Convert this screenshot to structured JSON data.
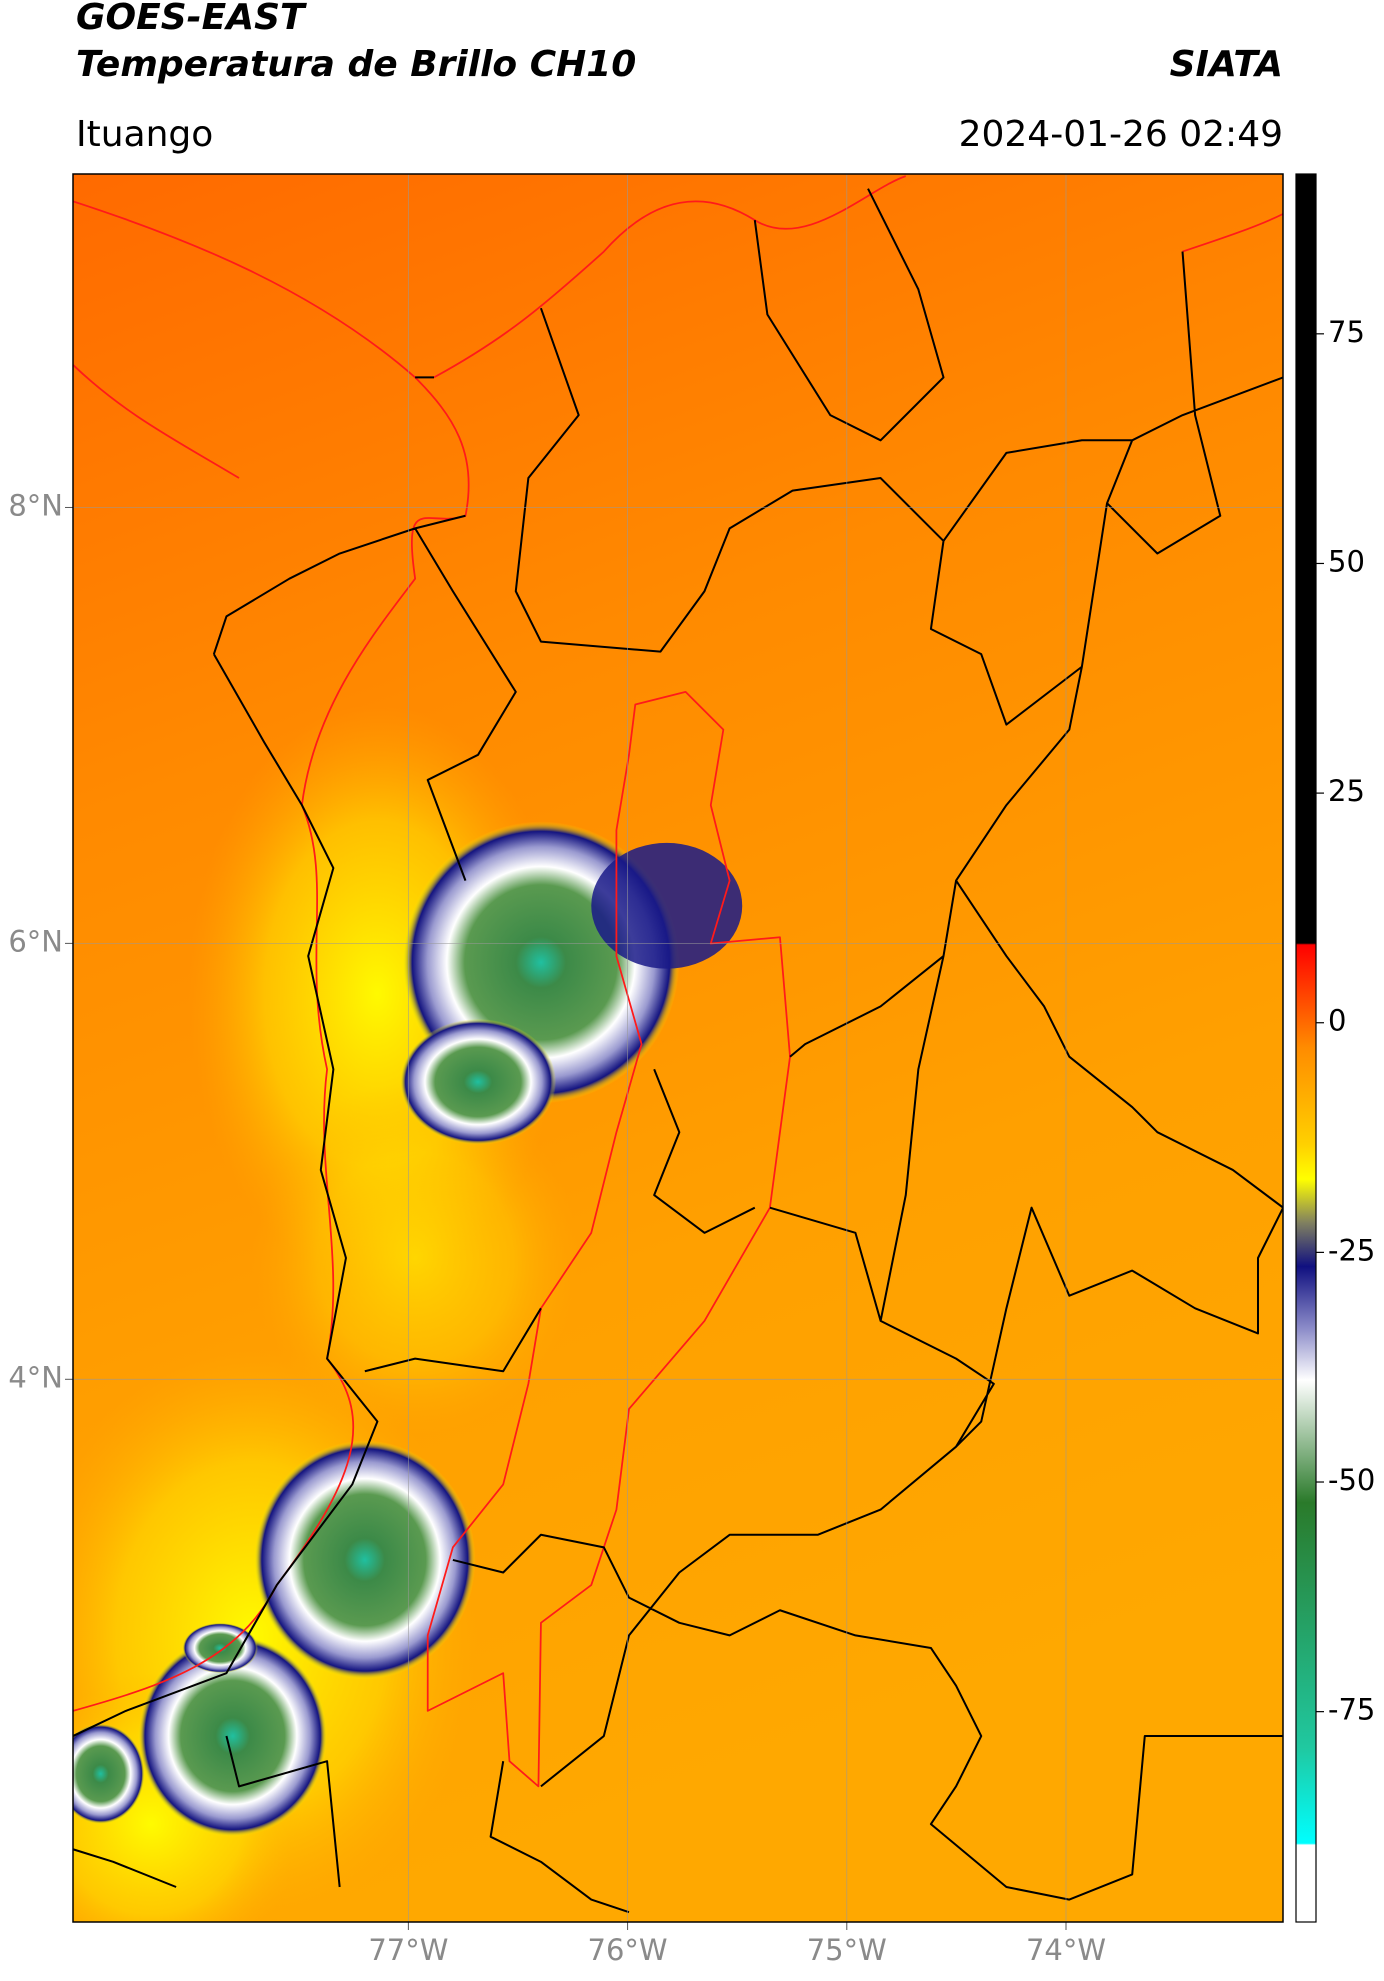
{
  "header": {
    "title": "GOES-EAST",
    "subtitle": "Temperatura de Brillo CH10",
    "source": "SIATA",
    "region": "Ituango",
    "timestamp": "2024-01-26 02:49"
  },
  "map": {
    "xlim": [
      -78.53,
      -73.01
    ],
    "ylim": [
      1.51,
      9.53
    ],
    "xticks": [
      {
        "value": -77,
        "label": "77°W"
      },
      {
        "value": -76,
        "label": "76°W"
      },
      {
        "value": -75,
        "label": "75°W"
      },
      {
        "value": -74,
        "label": "74°W"
      }
    ],
    "yticks": [
      {
        "value": 8,
        "label": "8°N"
      },
      {
        "value": 6,
        "label": "6°N"
      },
      {
        "value": 4,
        "label": "4°N"
      }
    ],
    "grid": true
  },
  "colorbar": {
    "lim": [
      -97.9,
      92.4
    ],
    "ticks": [
      75,
      50,
      25,
      0,
      -25,
      -50,
      -75
    ]
  }
}
